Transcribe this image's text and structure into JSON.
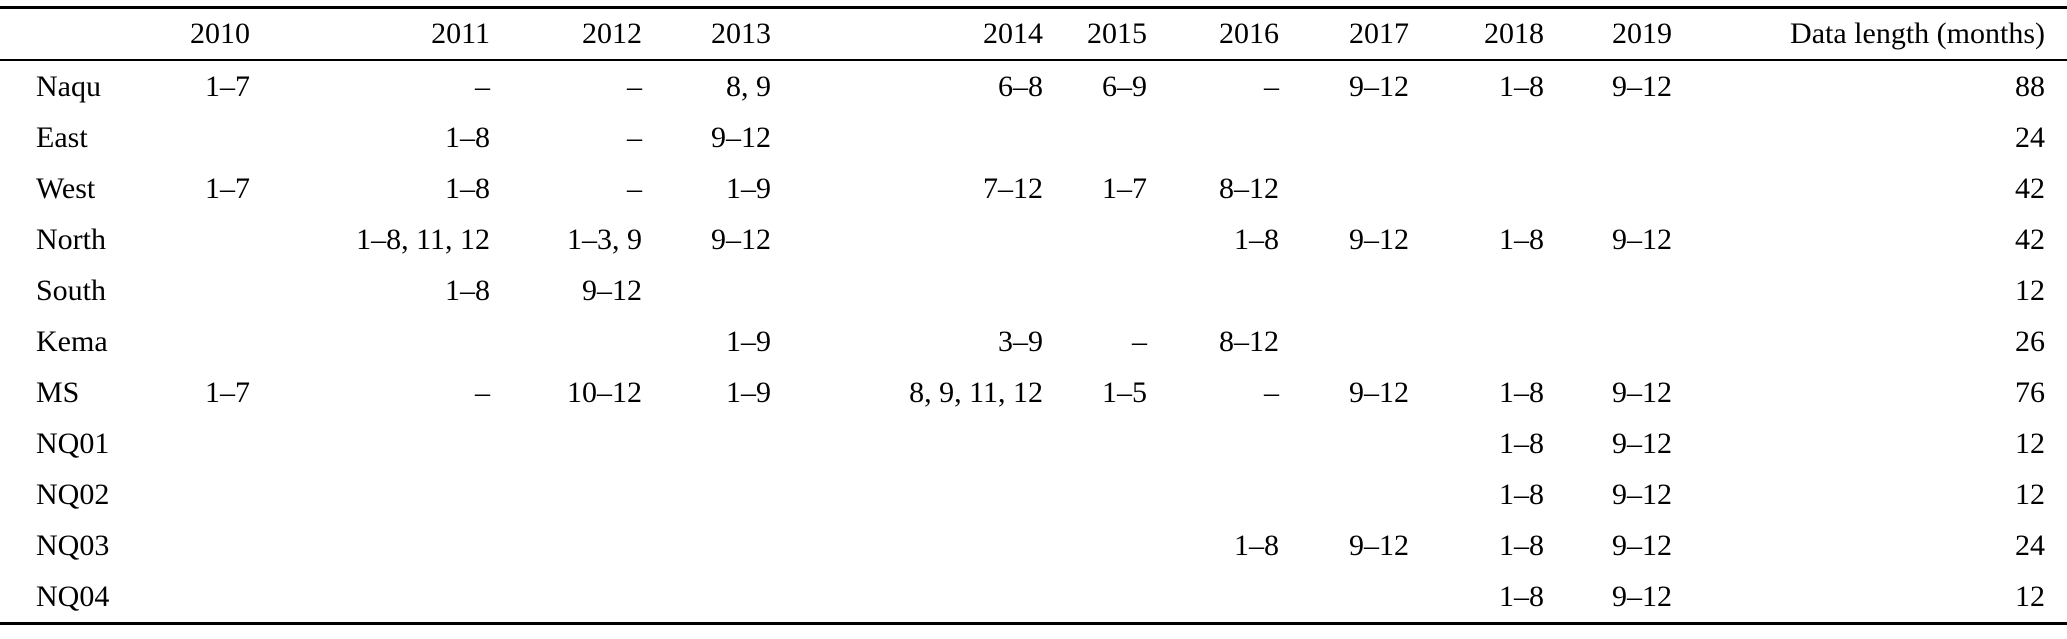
{
  "table": {
    "columns": [
      "",
      "2010",
      "2011",
      "2012",
      "2013",
      "2014",
      "2015",
      "2016",
      "2017",
      "2018",
      "2019",
      "Data length (months)"
    ],
    "rows": [
      {
        "station": "Naqu",
        "cells": [
          "1–7",
          "–",
          "–",
          "8, 9",
          "6–8",
          "6–9",
          "–",
          "9–12",
          "1–8",
          "9–12"
        ],
        "data_length": "88"
      },
      {
        "station": "East",
        "cells": [
          "",
          "1–8",
          "–",
          "9–12",
          "",
          "",
          "",
          "",
          "",
          ""
        ],
        "data_length": "24"
      },
      {
        "station": "West",
        "cells": [
          "1–7",
          "1–8",
          "–",
          "1–9",
          "7–12",
          "1–7",
          "8–12",
          "",
          "",
          ""
        ],
        "data_length": "42"
      },
      {
        "station": "North",
        "cells": [
          "",
          "1–8, 11, 12",
          "1–3, 9",
          "9–12",
          "",
          "",
          "1–8",
          "9–12",
          "1–8",
          "9–12"
        ],
        "data_length": "42"
      },
      {
        "station": "South",
        "cells": [
          "",
          "1–8",
          "9–12",
          "",
          "",
          "",
          "",
          "",
          "",
          ""
        ],
        "data_length": "12"
      },
      {
        "station": "Kema",
        "cells": [
          "",
          "",
          "",
          "1–9",
          "3–9",
          "–",
          "8–12",
          "",
          "",
          ""
        ],
        "data_length": "26"
      },
      {
        "station": "MS",
        "cells": [
          "1–7",
          "–",
          "10–12",
          "1–9",
          "8, 9, 11, 12",
          "1–5",
          "–",
          "9–12",
          "1–8",
          "9–12"
        ],
        "data_length": "76"
      },
      {
        "station": "NQ01",
        "cells": [
          "",
          "",
          "",
          "",
          "",
          "",
          "",
          "",
          "1–8",
          "9–12"
        ],
        "data_length": "12"
      },
      {
        "station": "NQ02",
        "cells": [
          "",
          "",
          "",
          "",
          "",
          "",
          "",
          "",
          "1–8",
          "9–12"
        ],
        "data_length": "12"
      },
      {
        "station": "NQ03",
        "cells": [
          "",
          "",
          "",
          "",
          "",
          "",
          "1–8",
          "9–12",
          "1–8",
          "9–12"
        ],
        "data_length": "24"
      },
      {
        "station": "NQ04",
        "cells": [
          "",
          "",
          "",
          "",
          "",
          "",
          "",
          "",
          "1–8",
          "9–12"
        ],
        "data_length": "12"
      }
    ]
  }
}
